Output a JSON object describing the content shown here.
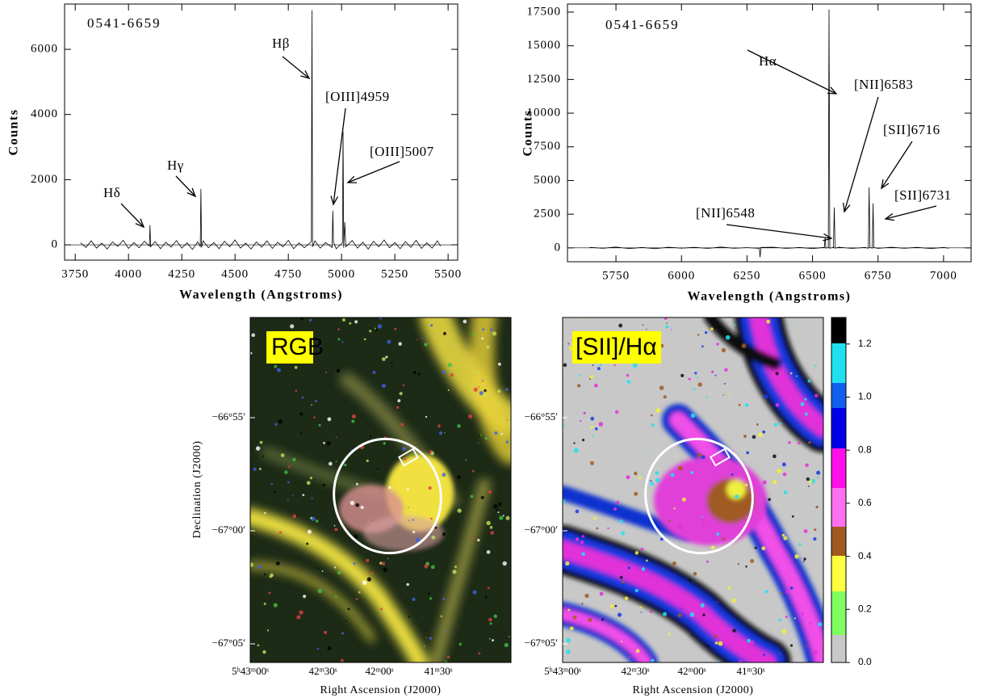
{
  "chart_data": [
    {
      "type": "line",
      "color": "#000000",
      "x": [
        3775,
        3800,
        3825,
        3850,
        3875,
        3900,
        3925,
        3950,
        3975,
        4000,
        4025,
        4050,
        4075,
        4098,
        4101,
        4104,
        4125,
        4150,
        4175,
        4200,
        4225,
        4250,
        4275,
        4300,
        4325,
        4337,
        4340,
        4343,
        4350,
        4375,
        4400,
        4425,
        4450,
        4475,
        4500,
        4525,
        4550,
        4575,
        4600,
        4625,
        4650,
        4675,
        4700,
        4725,
        4750,
        4775,
        4800,
        4825,
        4858,
        4861,
        4864,
        4875,
        4900,
        4925,
        4956,
        4959,
        4962,
        4975,
        5004,
        5007,
        5010,
        5015,
        5020,
        5050,
        5075,
        5100,
        5125,
        5150,
        5175,
        5200,
        5225,
        5250,
        5275,
        5300,
        5325,
        5350,
        5375,
        5400,
        5425,
        5450,
        5465
      ],
      "values": [
        60,
        -80,
        120,
        -100,
        50,
        -130,
        90,
        -50,
        140,
        -110,
        70,
        -90,
        110,
        -40,
        600,
        -60,
        100,
        -120,
        80,
        -70,
        130,
        -100,
        60,
        -140,
        90,
        -50,
        1720,
        -80,
        120,
        -90,
        70,
        -120,
        110,
        -60,
        150,
        -100,
        50,
        -130,
        90,
        -70,
        120,
        -110,
        80,
        -60,
        140,
        -120,
        60,
        -90,
        100,
        7200,
        -60,
        120,
        -100,
        70,
        -80,
        1050,
        90,
        -120,
        60,
        3480,
        -90,
        700,
        -60,
        130,
        -100,
        80,
        -130,
        110,
        -60,
        150,
        -90,
        70,
        -120,
        100,
        -80,
        140,
        -110,
        60,
        -100,
        120,
        -40
      ],
      "xlim": [
        3700,
        5545
      ],
      "ylim": [
        -470,
        7390
      ],
      "xticks": [
        3750,
        4000,
        4250,
        4500,
        4750,
        5000,
        5250,
        5500
      ],
      "yticks": [
        0,
        2000,
        4000,
        6000
      ],
      "xlabel": "Wavelength (Angstroms)",
      "ylabel": "Counts",
      "annotations": [
        "0541-6659",
        "Hδ",
        "Hγ",
        "Hβ",
        "[OIII]4959",
        "[OIII]5007"
      ]
    },
    {
      "type": "line",
      "color": "#000000",
      "x": [
        5650,
        5700,
        5750,
        5800,
        5850,
        5900,
        5950,
        6000,
        6050,
        6100,
        6150,
        6200,
        6250,
        6297,
        6300,
        6303,
        6350,
        6400,
        6450,
        6500,
        6545,
        6548,
        6551,
        6560,
        6563,
        6566,
        6580,
        6583,
        6586,
        6600,
        6650,
        6700,
        6713,
        6716,
        6719,
        6728,
        6731,
        6734,
        6750,
        6800,
        6850,
        6900,
        6950,
        7000,
        7020
      ],
      "values": [
        40,
        -30,
        60,
        -50,
        30,
        -60,
        50,
        -20,
        40,
        -40,
        60,
        -30,
        20,
        -40,
        -700,
        30,
        50,
        -40,
        30,
        -50,
        40,
        800,
        -20,
        30,
        17700,
        -30,
        40,
        3000,
        -20,
        50,
        -40,
        30,
        -30,
        4500,
        40,
        -20,
        3300,
        30,
        -40,
        50,
        -30,
        40,
        -50,
        30,
        -20
      ],
      "xlim": [
        5565,
        7105
      ],
      "ylim": [
        -1030,
        18100
      ],
      "xticks": [
        5750,
        6000,
        6250,
        6500,
        6750,
        7000
      ],
      "yticks": [
        0,
        2500,
        5000,
        7500,
        10000,
        12500,
        15000,
        17500
      ],
      "xlabel": "Wavelength (Angstroms)",
      "ylabel": "Counts",
      "annotations": [
        "0541-6659",
        "Hα",
        "[NII]6583",
        "[SII]6716",
        "[NII]6548",
        "[SII]6731"
      ]
    }
  ],
  "images": {
    "panels": [
      {
        "label": "RGB"
      },
      {
        "label": "[SII]/Hα"
      }
    ],
    "ylabel": "Declination (J2000)",
    "xlabel": "Right Ascension (J2000)",
    "dec_ticks": [
      "−66°55′",
      "−67°00′",
      "−67°05′"
    ],
    "ra_ticks": [
      "5ʰ43ᵐ00ˢ",
      "42ᵐ30ˢ",
      "42ᵐ00ˢ",
      "41ᵐ30ˢ"
    ],
    "colorbar": {
      "lim": [
        0,
        1.3
      ],
      "ticks": [
        {
          "value": 0,
          "label": "0.0"
        },
        0.2,
        0.4,
        0.6,
        0.8,
        {
          "value": 1,
          "label": "1.0"
        },
        1.2
      ]
    }
  }
}
